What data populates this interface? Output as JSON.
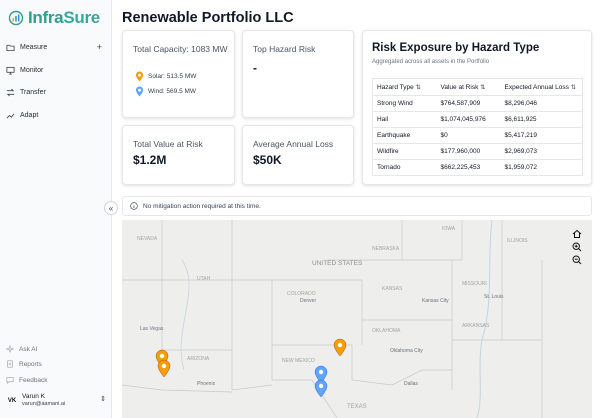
{
  "app": {
    "logo_part1": "Infra",
    "logo_part2": "Sure"
  },
  "sidebar": {
    "nav": [
      {
        "label": "Measure",
        "icon": "folder-icon"
      },
      {
        "label": "Monitor",
        "icon": "monitor-icon"
      },
      {
        "label": "Transfer",
        "icon": "transfer-icon"
      },
      {
        "label": "Adapt",
        "icon": "adapt-icon"
      }
    ],
    "measure_expand": "+",
    "secondary": [
      {
        "label": "Ask AI",
        "icon": "sparkle-icon"
      },
      {
        "label": "Reports",
        "icon": "reports-icon"
      },
      {
        "label": "Feedback",
        "icon": "chat-icon"
      }
    ],
    "user": {
      "initials": "VK",
      "name": "Varun K",
      "email": "varun@aamani.ai"
    },
    "collapse_glyph": "«"
  },
  "page": {
    "title": "Renewable Portfolio LLC"
  },
  "cards": {
    "capacity": {
      "label": "Total Capacity: 1083 MW",
      "solar": "Solar: 513.5 MW",
      "wind": "Wind: 569.5 MW"
    },
    "hazard": {
      "label": "Top Hazard Risk",
      "value": "-"
    },
    "value_at_risk": {
      "label": "Total Value at Risk",
      "value": "$1.2M"
    },
    "avg_loss": {
      "label": "Average Annual Loss",
      "value": "$50K"
    }
  },
  "risk_table": {
    "title": "Risk Exposure by Hazard Type",
    "subtitle": "Aggregated across all assets in the Portfolio",
    "columns": [
      "Hazard Type",
      "Value at Risk",
      "Expected Annual Loss"
    ],
    "rows": [
      [
        "Strong Wind",
        "$764,587,909",
        "$8,296,046"
      ],
      [
        "Hail",
        "$1,074,045,976",
        "$6,611,925"
      ],
      [
        "Earthquake",
        "$0",
        "$5,417,219"
      ],
      [
        "Wildfire",
        "$177,960,000",
        "$2,969,073"
      ],
      [
        "Tornado",
        "$662,225,453",
        "$1,959,072"
      ]
    ]
  },
  "notice": {
    "text": "No mitigation action required at this time."
  },
  "map": {
    "country_label": "UNITED STATES",
    "labels": [
      {
        "text": "IOWA"
      },
      {
        "text": "NEBRASKA"
      },
      {
        "text": "ILLINOIS"
      },
      {
        "text": "KANSAS"
      },
      {
        "text": "MISSOURI"
      },
      {
        "text": "COLORADO"
      },
      {
        "text": "UTAH"
      },
      {
        "text": "NEVADA"
      },
      {
        "text": "OKLAHOMA"
      },
      {
        "text": "ARKANSAS"
      },
      {
        "text": "NEW MEXICO"
      },
      {
        "text": "ARIZONA"
      },
      {
        "text": "TEXAS"
      },
      {
        "text": "Denver"
      },
      {
        "text": "Kansas City"
      },
      {
        "text": "Oklahoma City"
      },
      {
        "text": "Dallas"
      },
      {
        "text": "Phoenix"
      },
      {
        "text": "Las Vegas"
      },
      {
        "text": "St. Louis"
      }
    ],
    "solar_color": "#f59e0b",
    "wind_color": "#60a5fa"
  }
}
